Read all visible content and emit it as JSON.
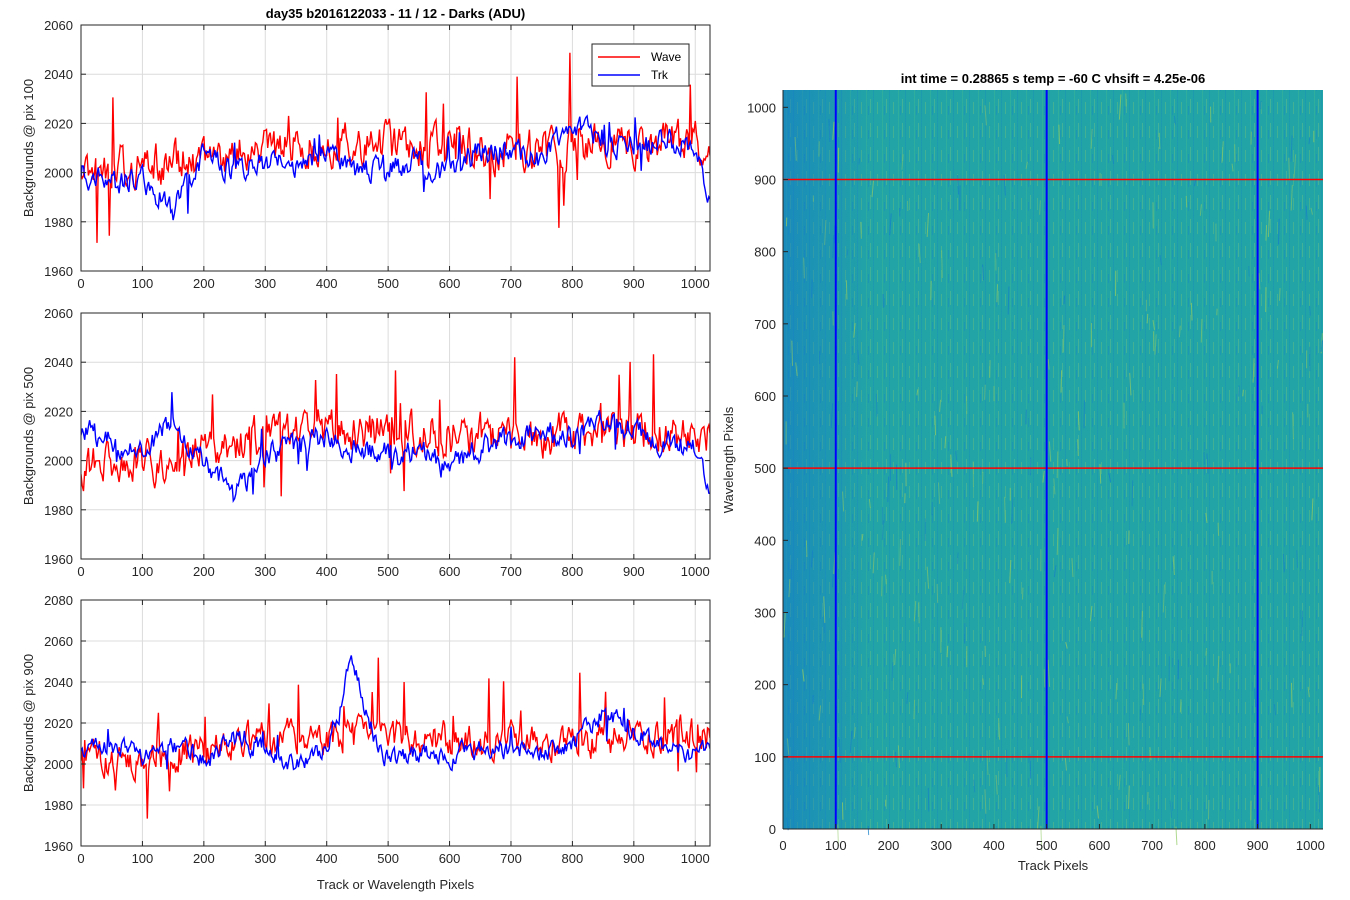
{
  "chart_data": [
    {
      "type": "line",
      "title": "day35 b2016122033 - 11 / 12 - Darks (ADU)",
      "ylabel": "Backgrounds @ pix 100",
      "xlabel": "",
      "xlim": [
        0,
        1024
      ],
      "ylim": [
        1960,
        2060
      ],
      "xticks": [
        0,
        100,
        200,
        300,
        400,
        500,
        600,
        700,
        800,
        900,
        1000
      ],
      "yticks": [
        1960,
        1980,
        2000,
        2020,
        2040,
        2060
      ],
      "grid": true,
      "legend": {
        "position": "top-right",
        "entries": [
          "Wave",
          "Trk"
        ]
      },
      "series": [
        {
          "name": "Wave",
          "color": "#ff0000",
          "approx_trend": {
            "x": [
              0,
              100,
              200,
              300,
              400,
              500,
              600,
              700,
              800,
              900,
              1024
            ],
            "y": [
              2003,
              2002,
              2006,
              2010,
              2012,
              2011,
              2010,
              2009,
              2011,
              2012,
              2013
            ]
          }
        },
        {
          "name": "Trk",
          "color": "#0000ff",
          "approx_trend": {
            "x": [
              0,
              50,
              100,
              150,
              200,
              250,
              300,
              350,
              400,
              450,
              500,
              550,
              600,
              650,
              700,
              750,
              800,
              850,
              900,
              950,
              1000,
              1024
            ],
            "y": [
              2000,
              1995,
              1998,
              1985,
              2008,
              2000,
              2005,
              2003,
              2010,
              2000,
              2002,
              2005,
              2000,
              2008,
              2010,
              2005,
              2020,
              2012,
              2010,
              2013,
              2008,
              1992
            ]
          }
        }
      ]
    },
    {
      "type": "line",
      "title": "",
      "ylabel": "Backgrounds @ pix 500",
      "xlabel": "",
      "xlim": [
        0,
        1024
      ],
      "ylim": [
        1960,
        2060
      ],
      "xticks": [
        0,
        100,
        200,
        300,
        400,
        500,
        600,
        700,
        800,
        900,
        1000
      ],
      "yticks": [
        1960,
        1980,
        2000,
        2020,
        2040,
        2060
      ],
      "grid": true,
      "series": [
        {
          "name": "Wave",
          "color": "#ff0000",
          "approx_trend": {
            "x": [
              0,
              100,
              200,
              300,
              400,
              500,
              600,
              700,
              800,
              900,
              1024
            ],
            "y": [
              1998,
              1999,
              2003,
              2010,
              2012,
              2012,
              2010,
              2009,
              2011,
              2012,
              2012
            ]
          }
        },
        {
          "name": "Trk",
          "color": "#0000ff",
          "approx_trend": {
            "x": [
              0,
              50,
              100,
              150,
              200,
              250,
              300,
              350,
              400,
              450,
              500,
              550,
              600,
              650,
              700,
              750,
              800,
              850,
              900,
              950,
              1000,
              1024
            ],
            "y": [
              2012,
              2008,
              2005,
              2015,
              2000,
              1985,
              2002,
              2005,
              2010,
              2005,
              2002,
              2003,
              2000,
              2005,
              2008,
              2012,
              2010,
              2015,
              2012,
              2008,
              2005,
              1990
            ]
          }
        }
      ]
    },
    {
      "type": "line",
      "title": "",
      "ylabel": "Backgrounds @ pix 900",
      "xlabel": "Track or Wavelength Pixels",
      "xlim": [
        0,
        1024
      ],
      "ylim": [
        1960,
        2080
      ],
      "xticks": [
        0,
        100,
        200,
        300,
        400,
        500,
        600,
        700,
        800,
        900,
        1000
      ],
      "yticks": [
        1960,
        1980,
        2000,
        2020,
        2040,
        2060,
        2080
      ],
      "grid": true,
      "series": [
        {
          "name": "Wave",
          "color": "#ff0000",
          "approx_trend": {
            "x": [
              0,
              100,
              200,
              300,
              400,
              500,
              600,
              700,
              800,
              900,
              1024
            ],
            "y": [
              2005,
              2000,
              2008,
              2012,
              2012,
              2013,
              2012,
              2011,
              2012,
              2012,
              2015
            ]
          }
        },
        {
          "name": "Trk",
          "color": "#0000ff",
          "approx_trend": {
            "x": [
              0,
              50,
              100,
              150,
              200,
              250,
              300,
              350,
              400,
              420,
              440,
              460,
              480,
              500,
              550,
              600,
              650,
              700,
              750,
              800,
              850,
              900,
              950,
              1000,
              1024
            ],
            "y": [
              2008,
              2010,
              2005,
              2010,
              2002,
              2012,
              2008,
              2000,
              2008,
              2025,
              2055,
              2030,
              2012,
              2002,
              2005,
              2003,
              2008,
              2008,
              2005,
              2010,
              2025,
              2015,
              2010,
              2005,
              2010
            ]
          }
        }
      ]
    },
    {
      "type": "heatmap",
      "title": "int time = 0.28865 s    temp = -60 C    vhsift = 4.25e-06",
      "xlabel": "Track Pixels",
      "ylabel": "Wavelength Pixels",
      "xlim": [
        0,
        1024
      ],
      "ylim": [
        0,
        1024
      ],
      "xticks": [
        0,
        100,
        200,
        300,
        400,
        500,
        600,
        700,
        800,
        900,
        1000
      ],
      "yticks": [
        0,
        100,
        200,
        300,
        400,
        500,
        600,
        700,
        800,
        900,
        1000
      ],
      "colormap": "parula",
      "base_color": "#1fa3a8",
      "overlay": {
        "horizontal_lines": {
          "y": [
            100,
            500,
            900
          ],
          "color": "#ff0000"
        },
        "vertical_lines": {
          "x": [
            100,
            500,
            900
          ],
          "color": "#0000ff"
        }
      }
    }
  ]
}
